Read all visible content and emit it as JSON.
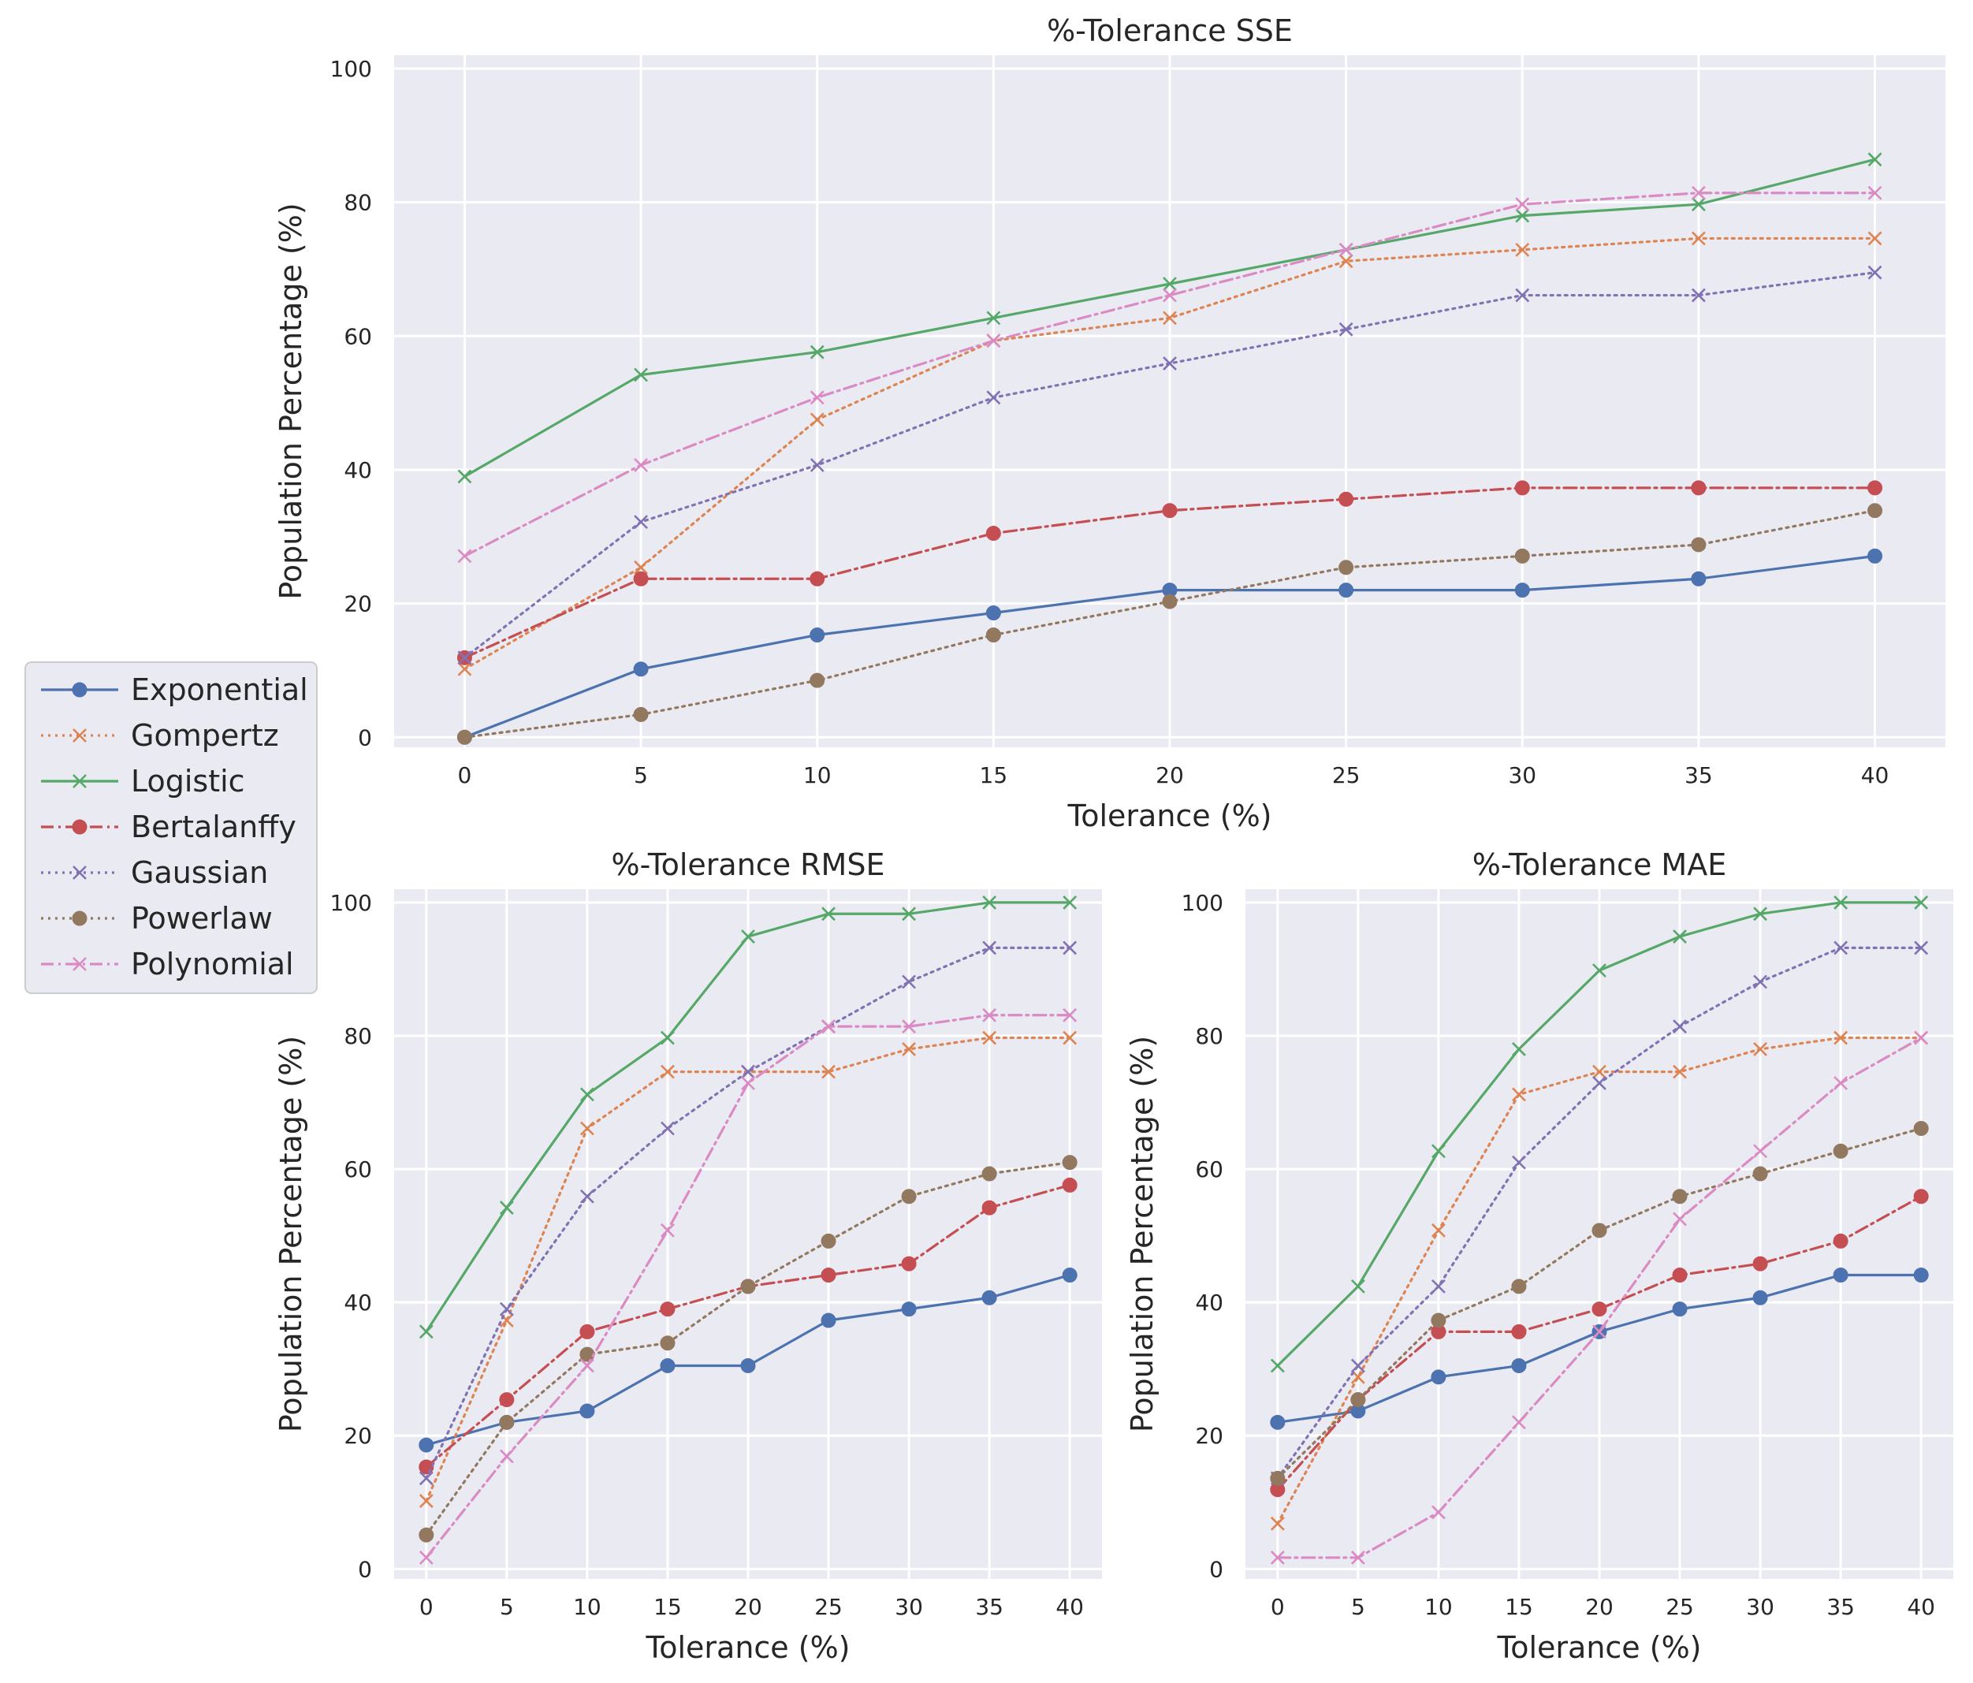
{
  "colors": {
    "Exponential": "#4C72B0",
    "Gompertz": "#DD8452",
    "Logistic": "#55A868",
    "Bertalanffy": "#C44E52",
    "Gaussian": "#8172B3",
    "Powerlaw": "#937860",
    "Polynomial": "#DA8BC3"
  },
  "legend": {
    "entries": [
      {
        "name": "Exponential",
        "marker": "circle",
        "linestyle": "solid"
      },
      {
        "name": "Gompertz",
        "marker": "x",
        "linestyle": "dotted"
      },
      {
        "name": "Logistic",
        "marker": "x",
        "linestyle": "solid"
      },
      {
        "name": "Bertalanffy",
        "marker": "circle",
        "linestyle": "dashdot"
      },
      {
        "name": "Gaussian",
        "marker": "x",
        "linestyle": "dotted"
      },
      {
        "name": "Powerlaw",
        "marker": "circle",
        "linestyle": "dotted"
      },
      {
        "name": "Polynomial",
        "marker": "x",
        "linestyle": "dashdot"
      }
    ]
  },
  "chart_data": [
    {
      "type": "line",
      "title": "%-Tolerance SSE",
      "xlabel": "Tolerance (%)",
      "ylabel": "Population Percentage (%)",
      "x": [
        0,
        5,
        10,
        15,
        20,
        25,
        30,
        35,
        40
      ],
      "xticks": [
        0,
        5,
        10,
        15,
        20,
        25,
        30,
        35,
        40
      ],
      "yticks": [
        0,
        20,
        40,
        60,
        80,
        100
      ],
      "xlim": [
        -2,
        42
      ],
      "ylim": [
        -1.5,
        102
      ],
      "grid": true,
      "series": [
        {
          "name": "Exponential",
          "values": [
            0,
            10.2,
            15.3,
            18.6,
            22.0,
            22.0,
            22.0,
            23.7,
            27.1
          ]
        },
        {
          "name": "Gompertz",
          "values": [
            10.2,
            25.4,
            47.5,
            59.3,
            62.7,
            71.2,
            72.9,
            74.6,
            74.6
          ]
        },
        {
          "name": "Logistic",
          "values": [
            39.0,
            54.2,
            57.6,
            62.7,
            67.8,
            72.9,
            78.0,
            79.7,
            86.4
          ]
        },
        {
          "name": "Bertalanffy",
          "values": [
            11.9,
            23.7,
            23.7,
            30.5,
            33.9,
            35.6,
            37.3,
            37.3,
            37.3
          ]
        },
        {
          "name": "Gaussian",
          "values": [
            11.9,
            32.2,
            40.7,
            50.8,
            55.9,
            61.0,
            66.1,
            66.1,
            69.5
          ]
        },
        {
          "name": "Powerlaw",
          "values": [
            0,
            3.4,
            8.5,
            15.3,
            20.3,
            25.4,
            27.1,
            28.8,
            33.9
          ]
        },
        {
          "name": "Polynomial",
          "values": [
            27.1,
            40.7,
            50.8,
            59.3,
            66.1,
            72.9,
            79.7,
            81.4,
            81.4
          ]
        }
      ]
    },
    {
      "type": "line",
      "title": "%-Tolerance RMSE",
      "xlabel": "Tolerance (%)",
      "ylabel": "Population Percentage (%)",
      "x": [
        0,
        5,
        10,
        15,
        20,
        25,
        30,
        35,
        40
      ],
      "xticks": [
        0,
        5,
        10,
        15,
        20,
        25,
        30,
        35,
        40
      ],
      "yticks": [
        0,
        20,
        40,
        60,
        80,
        100
      ],
      "xlim": [
        -2,
        42
      ],
      "ylim": [
        -1.5,
        102
      ],
      "grid": true,
      "series": [
        {
          "name": "Exponential",
          "values": [
            18.6,
            22.0,
            23.7,
            30.5,
            30.5,
            37.3,
            39.0,
            40.7,
            44.1
          ]
        },
        {
          "name": "Gompertz",
          "values": [
            10.2,
            37.3,
            66.1,
            74.6,
            74.6,
            74.6,
            78.0,
            79.7,
            79.7
          ]
        },
        {
          "name": "Logistic",
          "values": [
            35.6,
            54.2,
            71.2,
            79.7,
            94.9,
            98.3,
            98.3,
            100,
            100
          ]
        },
        {
          "name": "Bertalanffy",
          "values": [
            15.3,
            25.4,
            35.6,
            39.0,
            42.4,
            44.1,
            45.8,
            54.2,
            57.6
          ]
        },
        {
          "name": "Gaussian",
          "values": [
            13.6,
            39.0,
            55.9,
            66.1,
            74.6,
            81.4,
            88.1,
            93.2,
            93.2
          ]
        },
        {
          "name": "Powerlaw",
          "values": [
            5.1,
            22.0,
            32.2,
            33.9,
            42.4,
            49.2,
            55.9,
            59.3,
            61.0
          ]
        },
        {
          "name": "Polynomial",
          "values": [
            1.7,
            16.9,
            30.5,
            50.8,
            72.9,
            81.4,
            81.4,
            83.1,
            83.1
          ]
        }
      ]
    },
    {
      "type": "line",
      "title": "%-Tolerance MAE",
      "xlabel": "Tolerance (%)",
      "ylabel": "Population Percentage (%)",
      "x": [
        0,
        5,
        10,
        15,
        20,
        25,
        30,
        35,
        40
      ],
      "xticks": [
        0,
        5,
        10,
        15,
        20,
        25,
        30,
        35,
        40
      ],
      "yticks": [
        0,
        20,
        40,
        60,
        80,
        100
      ],
      "xlim": [
        -2,
        42
      ],
      "ylim": [
        -1.5,
        102
      ],
      "grid": true,
      "series": [
        {
          "name": "Exponential",
          "values": [
            22.0,
            23.7,
            28.8,
            30.5,
            35.6,
            39.0,
            40.7,
            44.1,
            44.1
          ]
        },
        {
          "name": "Gompertz",
          "values": [
            6.8,
            28.8,
            50.8,
            71.2,
            74.6,
            74.6,
            78.0,
            79.7,
            79.7
          ]
        },
        {
          "name": "Logistic",
          "values": [
            30.5,
            42.4,
            62.7,
            78.0,
            89.8,
            94.9,
            98.3,
            100,
            100
          ]
        },
        {
          "name": "Bertalanffy",
          "values": [
            11.9,
            25.4,
            35.6,
            35.6,
            39.0,
            44.1,
            45.8,
            49.2,
            55.9
          ]
        },
        {
          "name": "Gaussian",
          "values": [
            13.6,
            30.5,
            42.4,
            61.0,
            72.9,
            81.4,
            88.1,
            93.2,
            93.2
          ]
        },
        {
          "name": "Powerlaw",
          "values": [
            13.6,
            25.4,
            37.3,
            42.4,
            50.8,
            55.9,
            59.3,
            62.7,
            66.1
          ]
        },
        {
          "name": "Polynomial",
          "values": [
            1.7,
            1.7,
            8.5,
            22.0,
            35.6,
            52.5,
            62.7,
            72.9,
            79.7
          ]
        }
      ]
    }
  ]
}
